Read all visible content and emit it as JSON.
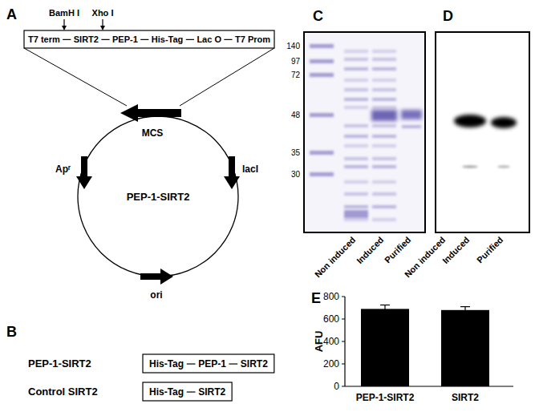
{
  "panel_labels": [
    "A",
    "B",
    "C",
    "D",
    "E"
  ],
  "plasmid": {
    "name": "PEP-1-SIRT2",
    "sites": [
      "BamH I",
      "Xho I"
    ],
    "cassette": [
      "T7 term",
      "SIRT2",
      "PEP-1",
      "His-Tag",
      "Lac O",
      "T7 Prom"
    ],
    "features": [
      "MCS",
      "Apʳ",
      "lacI",
      "ori"
    ]
  },
  "constructs": [
    {
      "name": "PEP-1-SIRT2",
      "parts": [
        "His-Tag",
        "PEP-1",
        "SIRT2"
      ]
    },
    {
      "name": "Control SIRT2",
      "parts": [
        "His-Tag",
        "SIRT2"
      ]
    }
  ],
  "gel": {
    "markers": [
      140,
      97,
      72,
      48,
      35,
      30
    ],
    "lanes": [
      "Non induced",
      "Induced",
      "Purified"
    ]
  },
  "blot": {
    "lanes": [
      "Non induced",
      "Induced",
      "Purified"
    ]
  },
  "chart_data": {
    "type": "bar",
    "categories": [
      "PEP-1-SIRT2",
      "SIRT2"
    ],
    "values": [
      690,
      680
    ],
    "errors": [
      35,
      30
    ],
    "y_label": "AFU",
    "ylim": [
      0,
      800
    ],
    "yticks": [
      0,
      200,
      400,
      600,
      800
    ],
    "color": "#000000",
    "grid": false
  }
}
